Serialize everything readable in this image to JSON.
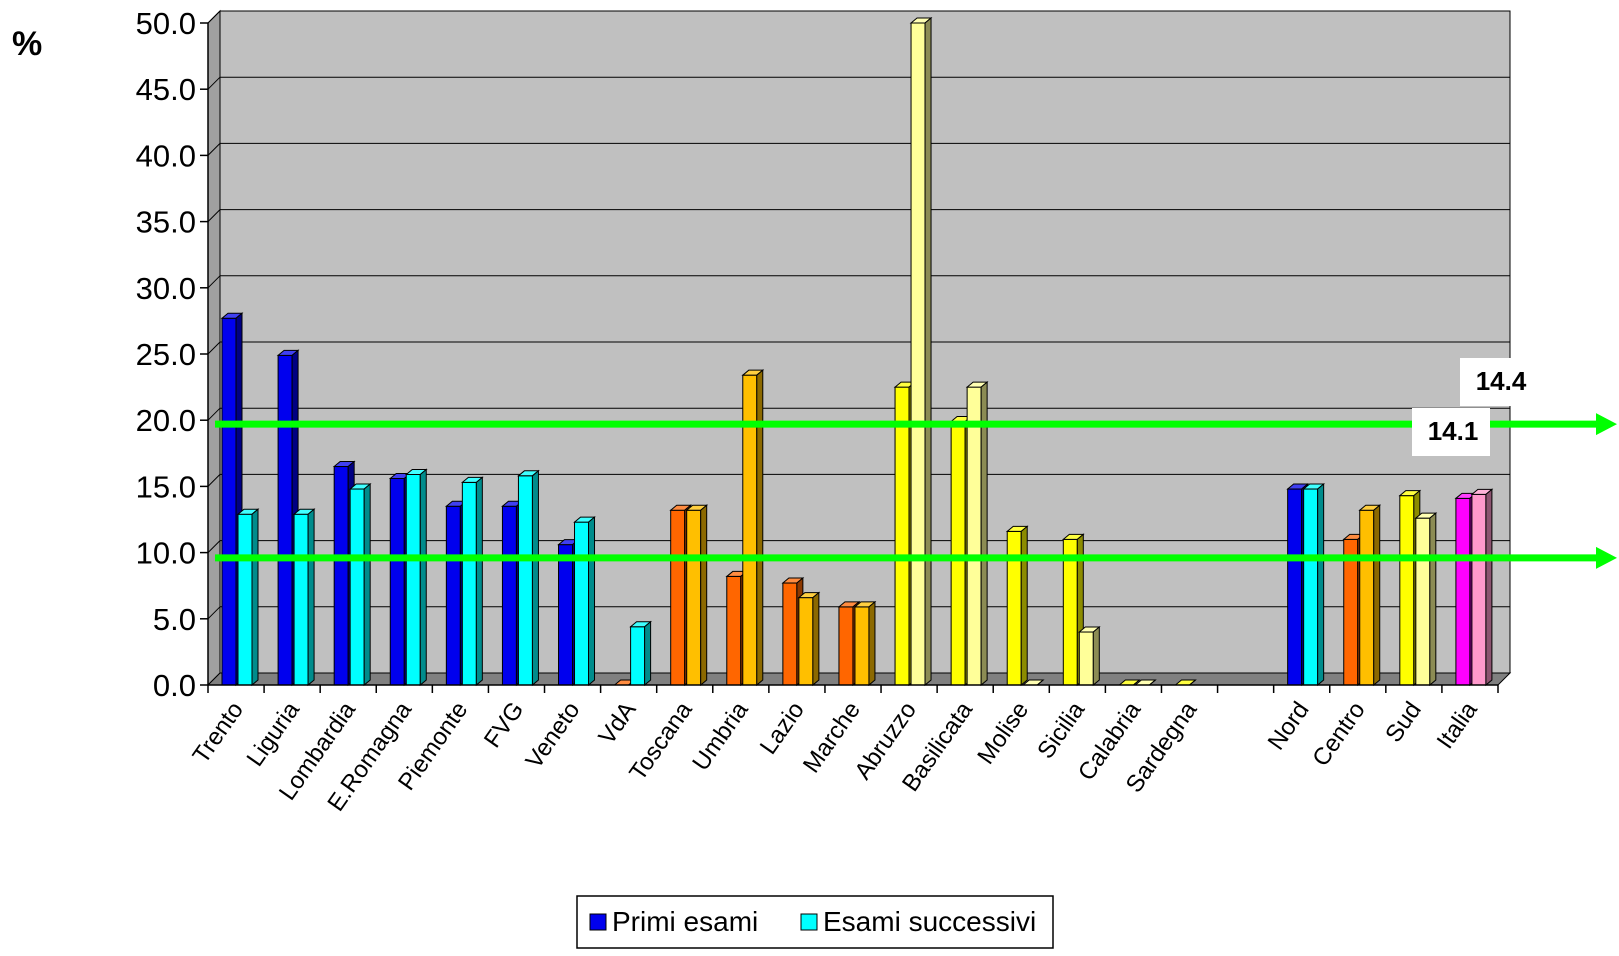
{
  "y_unit_label": "%",
  "colors": {
    "plot_bg": "#c0c0c0",
    "navy": "#0000ee",
    "cyan": "#00ffff",
    "orange": "#ff6600",
    "amber": "#ffbf00",
    "yellow": "#ffff00",
    "pale_yellow": "#ffff99",
    "magenta": "#ff00ff",
    "pink": "#ff99cc",
    "green_line": "#00ff00"
  },
  "chart_data": {
    "type": "bar",
    "categories": [
      "Trento",
      "Liguria",
      "Lombardia",
      "E.Romagna",
      "Piemonte",
      "FVG",
      "Veneto",
      "VdA",
      "Toscana",
      "Umbria",
      "Lazio",
      "Marche",
      "Abruzzo",
      "Basilicata",
      "Molise",
      "Sicilia",
      "Calabria",
      "Sardegna",
      "",
      "Nord",
      "Centro",
      "Sud",
      "Italia"
    ],
    "series": [
      {
        "name": "Primi esami",
        "values": [
          27.7,
          24.9,
          16.5,
          15.6,
          13.5,
          13.5,
          10.6,
          0.0,
          13.2,
          8.2,
          7.7,
          5.9,
          22.5,
          19.9,
          11.6,
          11.0,
          0.0,
          0.0,
          null,
          14.8,
          11.0,
          14.3,
          14.1
        ]
      },
      {
        "name": "Esami successivi",
        "values": [
          12.9,
          12.9,
          14.8,
          15.9,
          15.3,
          15.8,
          12.3,
          4.4,
          13.2,
          23.4,
          6.6,
          5.9,
          50.0,
          22.5,
          0.0,
          4.0,
          0.0,
          null,
          null,
          14.8,
          13.2,
          12.6,
          14.4
        ]
      }
    ],
    "bar_colors": [
      [
        "navy",
        "cyan"
      ],
      [
        "navy",
        "cyan"
      ],
      [
        "navy",
        "cyan"
      ],
      [
        "navy",
        "cyan"
      ],
      [
        "navy",
        "cyan"
      ],
      [
        "navy",
        "cyan"
      ],
      [
        "navy",
        "cyan"
      ],
      [
        "orange",
        "cyan"
      ],
      [
        "orange",
        "amber"
      ],
      [
        "orange",
        "amber"
      ],
      [
        "orange",
        "amber"
      ],
      [
        "orange",
        "amber"
      ],
      [
        "yellow",
        "pale_yellow"
      ],
      [
        "yellow",
        "pale_yellow"
      ],
      [
        "yellow",
        "pale_yellow"
      ],
      [
        "yellow",
        "pale_yellow"
      ],
      [
        "yellow",
        "pale_yellow"
      ],
      [
        "yellow",
        "pale_yellow"
      ],
      [
        null,
        null
      ],
      [
        "navy",
        "cyan"
      ],
      [
        "orange",
        "amber"
      ],
      [
        "yellow",
        "pale_yellow"
      ],
      [
        "magenta",
        "pink"
      ]
    ],
    "ylim": [
      0,
      50
    ],
    "yticks": [
      "0.0",
      "5.0",
      "10.0",
      "15.0",
      "20.0",
      "25.0",
      "30.0",
      "35.0",
      "40.0",
      "45.0",
      "50.0"
    ],
    "grid": true,
    "reference_lines": [
      {
        "value": 19.7,
        "color": "green_line"
      },
      {
        "value": 9.6,
        "color": "green_line"
      }
    ],
    "annotations": [
      "14.4",
      "14.1"
    ],
    "legend": {
      "position": "bottom",
      "items": [
        {
          "label": "Primi esami",
          "color": "navy"
        },
        {
          "label": "Esami successivi",
          "color": "cyan"
        }
      ]
    }
  }
}
